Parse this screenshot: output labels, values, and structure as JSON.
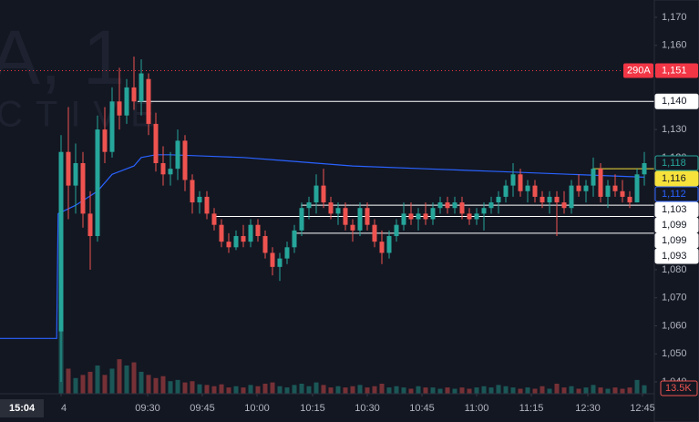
{
  "chart_data": {
    "type": "candlestick",
    "watermark": [
      "A, 1",
      "CTIVE"
    ],
    "x_current_label": "15:04",
    "xlim": [
      -8.375,
      81.375
    ],
    "xticks": [
      {
        "value": 0,
        "label": "4"
      },
      {
        "value": 11.875,
        "label": "09:30"
      },
      {
        "value": 19.375,
        "label": "09:45"
      },
      {
        "value": 26.875,
        "label": "10:00"
      },
      {
        "value": 34.5,
        "label": "10:15"
      },
      {
        "value": 42,
        "label": "10:30"
      },
      {
        "value": 49.5,
        "label": "10:45"
      },
      {
        "value": 57,
        "label": "11:00"
      },
      {
        "value": 64.5,
        "label": "11:15"
      },
      {
        "value": 72.25,
        "label": "12:30"
      },
      {
        "value": 79.75,
        "label": "12:45"
      }
    ],
    "ylim": [
      1040,
      1170
    ],
    "yticks": [
      {
        "value": 1040,
        "label": "1,040"
      },
      {
        "value": 1050,
        "label": "1,050"
      },
      {
        "value": 1060,
        "label": "1,060"
      },
      {
        "value": 1070,
        "label": "1,070"
      },
      {
        "value": 1080,
        "label": "1,080"
      },
      {
        "value": 1090,
        "label": "1,090"
      },
      {
        "value": 1100,
        "label": "1,100"
      },
      {
        "value": 1110,
        "label": "1,110"
      },
      {
        "value": 1120,
        "label": "1,120"
      },
      {
        "value": 1130,
        "label": "1,130"
      },
      {
        "value": 1140,
        "label": "1,140"
      },
      {
        "value": 1150,
        "label": "1,150"
      },
      {
        "value": 1160,
        "label": "1,160"
      },
      {
        "value": 1170,
        "label": "1,170"
      }
    ],
    "up_color": "#26a69a",
    "down_color": "#ef5350",
    "open": [
      1058,
      1122,
      1110,
      1118,
      1100,
      1092,
      1130,
      1122,
      1140,
      1135,
      1145,
      1140,
      1148,
      1132,
      1118,
      1114,
      1116,
      1126,
      1112,
      1104,
      1106,
      1100,
      1096,
      1090,
      1088,
      1092,
      1090,
      1096,
      1092,
      1086,
      1081,
      1084,
      1088,
      1094,
      1102,
      1104,
      1110,
      1104,
      1100,
      1102,
      1096,
      1094,
      1102,
      1096,
      1090,
      1086,
      1092,
      1096,
      1100,
      1098,
      1100,
      1098,
      1102,
      1104,
      1102,
      1104,
      1100,
      1098,
      1100,
      1102,
      1104,
      1106,
      1110,
      1114,
      1108,
      1110,
      1106,
      1104,
      1106,
      1104,
      1102,
      1110,
      1108,
      1110,
      1116,
      1106,
      1110,
      1108,
      1106,
      1104,
      1114
    ],
    "high": [
      1128,
      1138,
      1125,
      1122,
      1108,
      1135,
      1138,
      1145,
      1152,
      1148,
      1156,
      1155,
      1150,
      1136,
      1124,
      1122,
      1130,
      1128,
      1114,
      1108,
      1108,
      1102,
      1098,
      1093,
      1094,
      1096,
      1098,
      1098,
      1094,
      1088,
      1086,
      1090,
      1096,
      1104,
      1106,
      1114,
      1116,
      1106,
      1104,
      1104,
      1098,
      1104,
      1104,
      1098,
      1094,
      1094,
      1098,
      1104,
      1104,
      1102,
      1104,
      1104,
      1106,
      1106,
      1106,
      1106,
      1102,
      1102,
      1104,
      1106,
      1108,
      1112,
      1118,
      1116,
      1112,
      1112,
      1108,
      1108,
      1108,
      1108,
      1112,
      1114,
      1112,
      1120,
      1118,
      1112,
      1114,
      1112,
      1108,
      1116,
      1122
    ],
    "low": [
      1040,
      1098,
      1100,
      1095,
      1080,
      1090,
      1118,
      1120,
      1130,
      1132,
      1137,
      1135,
      1128,
      1115,
      1110,
      1110,
      1112,
      1108,
      1100,
      1100,
      1098,
      1094,
      1088,
      1086,
      1087,
      1088,
      1088,
      1090,
      1084,
      1078,
      1076,
      1082,
      1086,
      1092,
      1098,
      1100,
      1102,
      1098,
      1096,
      1094,
      1090,
      1092,
      1094,
      1088,
      1082,
      1084,
      1090,
      1094,
      1096,
      1094,
      1096,
      1096,
      1100,
      1100,
      1100,
      1098,
      1096,
      1096,
      1094,
      1100,
      1100,
      1104,
      1106,
      1106,
      1104,
      1104,
      1102,
      1100,
      1092,
      1100,
      1100,
      1106,
      1104,
      1106,
      1104,
      1102,
      1106,
      1104,
      1102,
      1104,
      1110
    ],
    "close": [
      1122,
      1110,
      1118,
      1100,
      1092,
      1130,
      1122,
      1140,
      1135,
      1145,
      1140,
      1150,
      1132,
      1118,
      1114,
      1116,
      1126,
      1112,
      1104,
      1106,
      1100,
      1096,
      1090,
      1088,
      1092,
      1090,
      1096,
      1092,
      1086,
      1081,
      1084,
      1088,
      1094,
      1102,
      1104,
      1110,
      1104,
      1100,
      1102,
      1096,
      1094,
      1102,
      1096,
      1090,
      1086,
      1092,
      1096,
      1100,
      1098,
      1100,
      1098,
      1102,
      1104,
      1102,
      1104,
      1100,
      1098,
      1100,
      1102,
      1104,
      1106,
      1110,
      1114,
      1108,
      1110,
      1106,
      1104,
      1106,
      1104,
      1102,
      1110,
      1108,
      1110,
      1116,
      1106,
      1110,
      1108,
      1106,
      1104,
      1114,
      1118
    ],
    "volume": {
      "values": [
        110,
        40,
        25,
        30,
        35,
        45,
        30,
        40,
        55,
        45,
        50,
        35,
        30,
        25,
        28,
        20,
        22,
        18,
        20,
        15,
        14,
        12,
        15,
        10,
        12,
        10,
        14,
        12,
        16,
        18,
        12,
        10,
        14,
        16,
        12,
        18,
        14,
        10,
        12,
        10,
        12,
        14,
        10,
        12,
        16,
        10,
        12,
        10,
        8,
        12,
        10,
        10,
        8,
        10,
        8,
        10,
        8,
        10,
        12,
        10,
        14,
        12,
        10,
        8,
        10,
        8,
        12,
        8,
        16,
        10,
        12,
        8,
        10,
        14,
        10,
        8,
        10,
        8,
        10,
        22,
        13.5
      ],
      "vlim": [
        0,
        600
      ],
      "last": {
        "value": 13.5,
        "label": "13.5K"
      }
    },
    "vwap": {
      "color": "#2962ff",
      "x": [
        -8.375,
        -0.6,
        -0.4,
        2,
        5,
        7,
        10,
        11,
        13,
        15,
        20,
        25,
        30,
        35,
        40,
        50,
        60,
        70,
        80
      ],
      "values": [
        1055.5,
        1055.5,
        1100,
        1103,
        1108,
        1114,
        1117,
        1120,
        1121,
        1121,
        1120.5,
        1120,
        1119,
        1118,
        1117,
        1116,
        1115,
        1114,
        1113
      ],
      "last": {
        "value": 1112,
        "label": "1,112"
      }
    },
    "levels": [
      {
        "value": 1140,
        "label": "1,140",
        "from": 10.5,
        "color": "#ffffff"
      },
      {
        "value": 1103,
        "label": "1,103",
        "from": 32.9,
        "color": "#ffffff"
      },
      {
        "value": 1099,
        "label": "1,099",
        "from": 21,
        "color": "#ffffff"
      },
      {
        "value": 1099,
        "label": "1,099",
        "from": 21,
        "color": "#ffffff"
      },
      {
        "value": 1093,
        "label": "1,093",
        "from": 32,
        "color": "#ffffff"
      },
      {
        "value": 1116,
        "label": "1,116",
        "from": 72.9,
        "color": "#f7e23b"
      }
    ],
    "current": {
      "value": 1118,
      "label": "1,118",
      "color": "#26a69a"
    },
    "alert": {
      "value": 1151,
      "label": "1,151",
      "tag": "290A",
      "color": "#f23645"
    }
  }
}
